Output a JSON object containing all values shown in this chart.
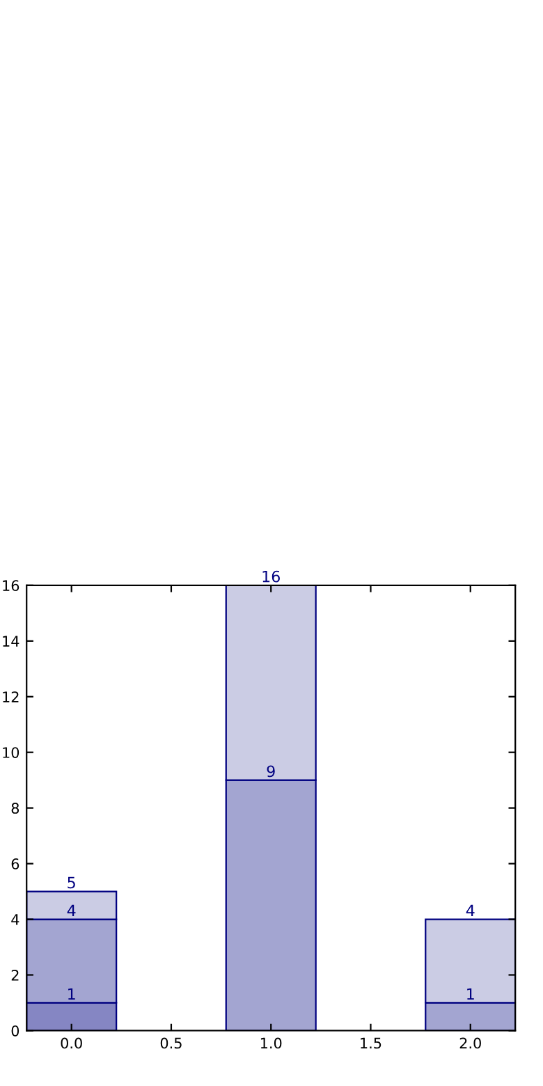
{
  "chart_data": {
    "type": "bar",
    "stacked": true,
    "x": [
      0,
      1,
      2
    ],
    "series": [
      {
        "colors": [
          "#8586c3",
          "#a3a5d1",
          "#a3a5d1"
        ],
        "values": [
          1,
          9,
          1
        ]
      },
      {
        "colors": [
          "#a3a5d1",
          "#cbcce4",
          "#cbcce4"
        ],
        "values": [
          3,
          7,
          3
        ]
      },
      {
        "colors": [
          "#cbcce4",
          null,
          null
        ],
        "values": [
          1,
          null,
          null
        ]
      }
    ],
    "annotations": [
      {
        "text": "1",
        "x": 0,
        "y": 1
      },
      {
        "text": "4",
        "x": 0,
        "y": 4
      },
      {
        "text": "5",
        "x": 0,
        "y": 5
      },
      {
        "text": "9",
        "x": 1,
        "y": 9
      },
      {
        "text": "16",
        "x": 1,
        "y": 16
      },
      {
        "text": "1",
        "x": 2,
        "y": 1
      },
      {
        "text": "4",
        "x": 2,
        "y": 4
      }
    ],
    "xlim": [
      -0.225,
      2.225
    ],
    "xticks": [
      {
        "value": 0,
        "label": "0.0"
      },
      {
        "value": 0.5,
        "label": "0.5"
      },
      {
        "value": 1,
        "label": "1.0"
      },
      {
        "value": 1.5,
        "label": "1.5"
      },
      {
        "value": 2,
        "label": "2.0"
      }
    ],
    "ylim": [
      0,
      16
    ],
    "yticks": [
      0,
      2,
      4,
      6,
      8,
      10,
      12,
      14,
      16
    ],
    "grid": false,
    "legend": false
  }
}
